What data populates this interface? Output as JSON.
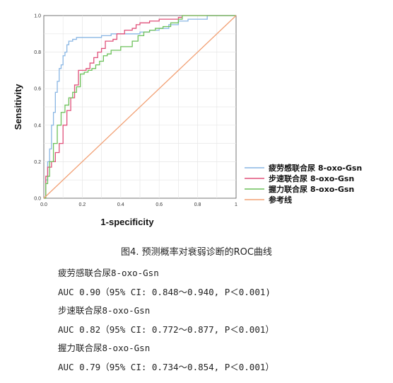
{
  "chart_data": {
    "type": "line",
    "title": "",
    "xlabel": "1-specificity",
    "ylabel": "Sensitivity",
    "xlim": [
      0,
      1
    ],
    "ylim": [
      0,
      1
    ],
    "xticks": [
      "0.0",
      "0.2",
      "0.4",
      "0.6",
      "0.8",
      "1"
    ],
    "yticks": [
      "0.0",
      "0.2",
      "0.4",
      "0.6",
      "0.8",
      "1.0"
    ],
    "grid": true,
    "legend_position": "right",
    "series": [
      {
        "name": "疲劳感联合尿 8-oxo-Gsn",
        "color": "#89b6e4",
        "x": [
          0,
          0.01,
          0.02,
          0.03,
          0.04,
          0.05,
          0.06,
          0.07,
          0.08,
          0.09,
          0.1,
          0.11,
          0.12,
          0.13,
          0.14,
          0.15,
          0.17,
          0.2,
          0.25,
          0.3,
          0.35,
          0.4,
          0.45,
          0.5,
          0.55,
          0.6,
          0.65,
          0.7,
          0.75,
          0.8,
          0.85,
          1.0
        ],
        "y": [
          0,
          0.1,
          0.2,
          0.27,
          0.4,
          0.47,
          0.58,
          0.64,
          0.71,
          0.73,
          0.78,
          0.8,
          0.84,
          0.86,
          0.86,
          0.87,
          0.88,
          0.88,
          0.88,
          0.89,
          0.9,
          0.9,
          0.9,
          0.91,
          0.92,
          0.93,
          0.95,
          0.97,
          0.98,
          0.98,
          1.0,
          1.0
        ]
      },
      {
        "name": "步速联合尿 8-oxo-Gsn",
        "color": "#e0507a",
        "x": [
          0,
          0.01,
          0.02,
          0.04,
          0.06,
          0.08,
          0.1,
          0.12,
          0.14,
          0.16,
          0.18,
          0.2,
          0.22,
          0.24,
          0.26,
          0.28,
          0.3,
          0.32,
          0.34,
          0.36,
          0.38,
          0.4,
          0.42,
          0.44,
          0.46,
          0.48,
          0.5,
          0.52,
          0.55,
          0.6,
          0.65,
          0.7,
          0.72,
          0.8,
          1.0
        ],
        "y": [
          0,
          0.12,
          0.17,
          0.2,
          0.25,
          0.3,
          0.4,
          0.48,
          0.55,
          0.62,
          0.7,
          0.7,
          0.71,
          0.74,
          0.77,
          0.8,
          0.82,
          0.86,
          0.86,
          0.87,
          0.9,
          0.9,
          0.92,
          0.92,
          0.93,
          0.95,
          0.96,
          0.96,
          0.97,
          0.98,
          0.98,
          0.99,
          1.0,
          1.0,
          1.0
        ]
      },
      {
        "name": "握力联合尿 8-oxo-Gsn",
        "color": "#6cc15a",
        "x": [
          0,
          0.01,
          0.02,
          0.03,
          0.05,
          0.07,
          0.09,
          0.11,
          0.13,
          0.15,
          0.17,
          0.19,
          0.21,
          0.23,
          0.25,
          0.27,
          0.29,
          0.31,
          0.33,
          0.35,
          0.37,
          0.4,
          0.43,
          0.46,
          0.49,
          0.52,
          0.55,
          0.58,
          0.62,
          0.66,
          0.7,
          0.72,
          0.8,
          1.0
        ],
        "y": [
          0,
          0.08,
          0.12,
          0.2,
          0.3,
          0.4,
          0.47,
          0.51,
          0.55,
          0.58,
          0.61,
          0.68,
          0.69,
          0.7,
          0.71,
          0.73,
          0.75,
          0.78,
          0.79,
          0.81,
          0.81,
          0.83,
          0.83,
          0.86,
          0.89,
          0.91,
          0.92,
          0.93,
          0.94,
          0.96,
          0.98,
          1.0,
          1.0,
          1.0
        ]
      },
      {
        "name": "参考线",
        "color": "#f2a074",
        "x": [
          0,
          1
        ],
        "y": [
          0,
          1
        ]
      }
    ]
  },
  "caption": "图4. 预测概率对衰弱诊断的ROC曲线",
  "notes": [
    "疲劳感联合尿8-oxo-Gsn",
    "AUC 0.90（95% CI: 0.848～0.940, P＜0.001)",
    "步速联合尿8-oxo-Gsn",
    "AUC 0.82（95% CI: 0.772～0.877, P＜0.001）",
    "握力联合尿8-oxo-Gsn",
    "AUC 0.79（95% CI: 0.734～0.854, P＜0.001）"
  ]
}
